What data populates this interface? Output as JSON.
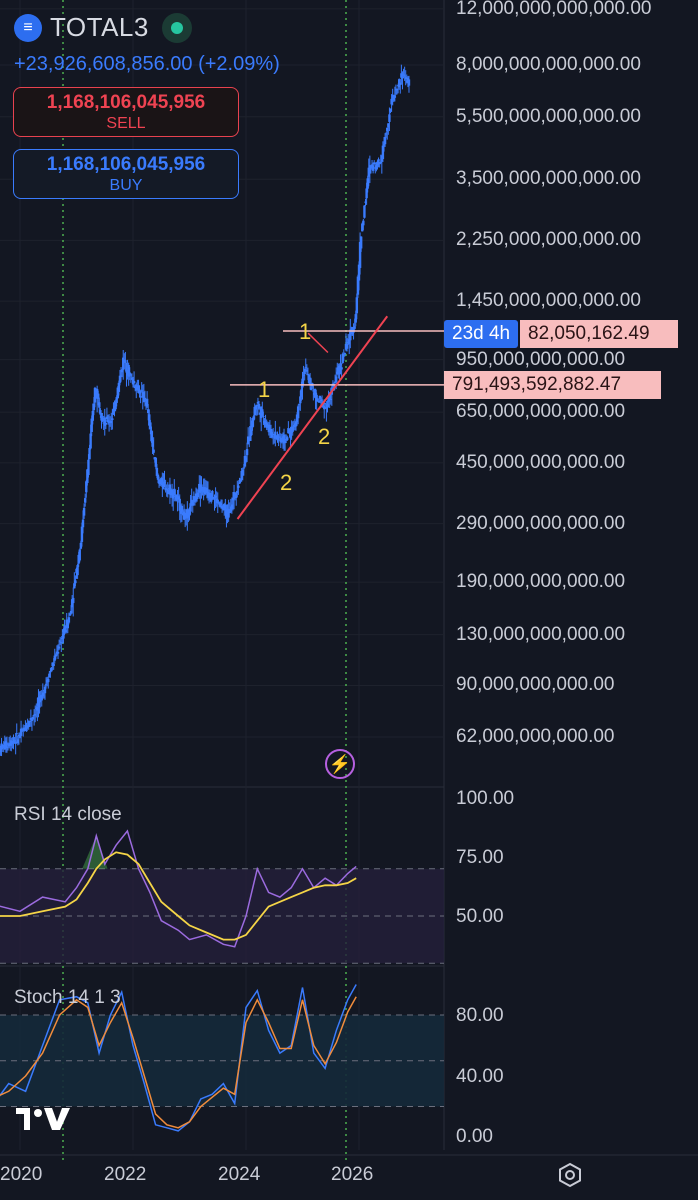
{
  "header": {
    "symbol": "TOTAL3",
    "symbol_icon": "exchange-logo-icon",
    "change_text": "+23,926,608,856.00 (+2.09%)",
    "sell_price": "1,168,106,045,956",
    "sell_label": "SELL",
    "buy_price": "1,168,106,045,956",
    "buy_label": "BUY"
  },
  "colors": {
    "background": "#131722",
    "candles": "#3a7bfd",
    "trendline": "#ef4352",
    "annotation_numbers": "#f5d547",
    "rsi_line": "#9b6bdf",
    "rsi_ma": "#f5d547",
    "stoch_k": "#3a7bfd",
    "stoch_d": "#f08c3c",
    "vertical_markers": "#4caf50"
  },
  "price_tags": {
    "countdown": "23d 4h",
    "countdown_price": "82,050,162.49",
    "level_price": "791,493,592,882.47"
  },
  "chart_data": [
    {
      "type": "candlestick",
      "title": "TOTAL3",
      "scale": "log",
      "y_ticks": [
        "12,000,000,000,000.00",
        "8,000,000,000,000.00",
        "5,500,000,000,000.00",
        "3,500,000,000,000.00",
        "2,250,000,000,000.00",
        "1,450,000,000,000.00",
        "950,000,000,000.00",
        "650,000,000,000.00",
        "450,000,000,000.00",
        "290,000,000,000.00",
        "190,000,000,000.00",
        "130,000,000,000.00",
        "90,000,000,000.00",
        "62,000,000,000.00"
      ],
      "ylim": [
        50000000000,
        12000000000000
      ],
      "x_ticks": [
        "2020",
        "2022",
        "2024",
        "2026"
      ],
      "points": [
        {
          "t": 2019.5,
          "v": 55000000000
        },
        {
          "t": 2020.0,
          "v": 62000000000
        },
        {
          "t": 2020.3,
          "v": 75000000000
        },
        {
          "t": 2020.6,
          "v": 105000000000
        },
        {
          "t": 2020.9,
          "v": 150000000000
        },
        {
          "t": 2021.1,
          "v": 260000000000
        },
        {
          "t": 2021.35,
          "v": 780000000000
        },
        {
          "t": 2021.5,
          "v": 600000000000
        },
        {
          "t": 2021.65,
          "v": 620000000000
        },
        {
          "t": 2021.85,
          "v": 950000000000
        },
        {
          "t": 2022.0,
          "v": 820000000000
        },
        {
          "t": 2022.25,
          "v": 700000000000
        },
        {
          "t": 2022.45,
          "v": 400000000000
        },
        {
          "t": 2022.75,
          "v": 360000000000
        },
        {
          "t": 2022.95,
          "v": 300000000000
        },
        {
          "t": 2023.2,
          "v": 380000000000
        },
        {
          "t": 2023.45,
          "v": 350000000000
        },
        {
          "t": 2023.7,
          "v": 310000000000
        },
        {
          "t": 2023.95,
          "v": 420000000000
        },
        {
          "t": 2024.2,
          "v": 700000000000
        },
        {
          "t": 2024.45,
          "v": 560000000000
        },
        {
          "t": 2024.7,
          "v": 530000000000
        },
        {
          "t": 2024.9,
          "v": 600000000000
        },
        {
          "t": 2025.05,
          "v": 900000000000
        },
        {
          "t": 2025.25,
          "v": 720000000000
        },
        {
          "t": 2025.45,
          "v": 680000000000
        },
        {
          "t": 2025.6,
          "v": 820000000000
        },
        {
          "t": 2025.8,
          "v": 1050000000000
        },
        {
          "t": 2025.95,
          "v": 1250000000000
        },
        {
          "t": 2026.05,
          "v": 2300000000000
        },
        {
          "t": 2026.2,
          "v": 3800000000000
        },
        {
          "t": 2026.4,
          "v": 4000000000000
        },
        {
          "t": 2026.6,
          "v": 6200000000000
        },
        {
          "t": 2026.8,
          "v": 7500000000000
        },
        {
          "t": 2026.95,
          "v": 6800000000000
        }
      ],
      "annotations": [
        "1",
        "1",
        "2",
        "2"
      ],
      "levels": [
        791493592882.47,
        1168106045956
      ]
    },
    {
      "type": "line",
      "title": "RSI 14 close",
      "y_ticks": [
        "100.00",
        "75.00",
        "50.00"
      ],
      "ylim": [
        25,
        100
      ],
      "band": [
        30,
        70
      ],
      "x": [
        2019.5,
        2020.0,
        2020.4,
        2020.8,
        2021.0,
        2021.2,
        2021.35,
        2021.5,
        2021.7,
        2021.9,
        2022.1,
        2022.3,
        2022.5,
        2022.8,
        2023.0,
        2023.3,
        2023.6,
        2023.8,
        2024.0,
        2024.2,
        2024.4,
        2024.6,
        2024.8,
        2025.0,
        2025.2,
        2025.4,
        2025.6,
        2025.8,
        2025.95
      ],
      "series": [
        {
          "values": [
            55,
            52,
            58,
            56,
            62,
            70,
            84,
            72,
            80,
            86,
            70,
            60,
            48,
            44,
            40,
            42,
            38,
            37,
            50,
            70,
            60,
            58,
            62,
            70,
            62,
            66,
            63,
            68,
            71
          ]
        },
        {
          "values": [
            50,
            50,
            52,
            54,
            57,
            64,
            70,
            74,
            77,
            76,
            72,
            64,
            56,
            50,
            46,
            43,
            40,
            40,
            42,
            48,
            54,
            56,
            58,
            60,
            62,
            63,
            63,
            64,
            66
          ]
        }
      ]
    },
    {
      "type": "line",
      "title": "Stoch 14 1 3",
      "y_ticks": [
        "80.00",
        "40.00",
        "0.00"
      ],
      "ylim": [
        -2,
        105
      ],
      "band": [
        20,
        80
      ],
      "x": [
        2019.5,
        2019.8,
        2020.1,
        2020.4,
        2020.7,
        2021.0,
        2021.2,
        2021.4,
        2021.6,
        2021.8,
        2022.0,
        2022.2,
        2022.4,
        2022.6,
        2022.8,
        2023.0,
        2023.2,
        2023.4,
        2023.6,
        2023.8,
        2024.0,
        2024.2,
        2024.4,
        2024.6,
        2024.8,
        2025.0,
        2025.2,
        2025.4,
        2025.6,
        2025.8,
        2025.95
      ],
      "series": [
        {
          "values": [
            20,
            35,
            30,
            60,
            90,
            92,
            88,
            55,
            80,
            95,
            60,
            35,
            8,
            6,
            4,
            10,
            25,
            28,
            35,
            22,
            85,
            96,
            70,
            55,
            60,
            98,
            55,
            45,
            70,
            90,
            100
          ]
        },
        {
          "values": [
            25,
            30,
            40,
            55,
            80,
            90,
            85,
            60,
            75,
            88,
            65,
            40,
            15,
            8,
            6,
            10,
            20,
            26,
            32,
            28,
            75,
            90,
            75,
            58,
            58,
            90,
            60,
            48,
            62,
            82,
            92
          ]
        }
      ]
    }
  ],
  "rsi_pane": {
    "title": "RSI 14 close",
    "ticks": [
      "100.00",
      "75.00",
      "50.00"
    ]
  },
  "stoch_pane": {
    "title": "Stoch 14 1 3",
    "ticks": [
      "80.00",
      "40.00",
      "0.00"
    ]
  },
  "time_axis": [
    "2020",
    "2022",
    "2024",
    "2026"
  ],
  "icons": {
    "tradingview_logo": "tradingview-logo-icon",
    "settings": "settings-hexagon-icon",
    "event": "lightning-event-icon"
  }
}
